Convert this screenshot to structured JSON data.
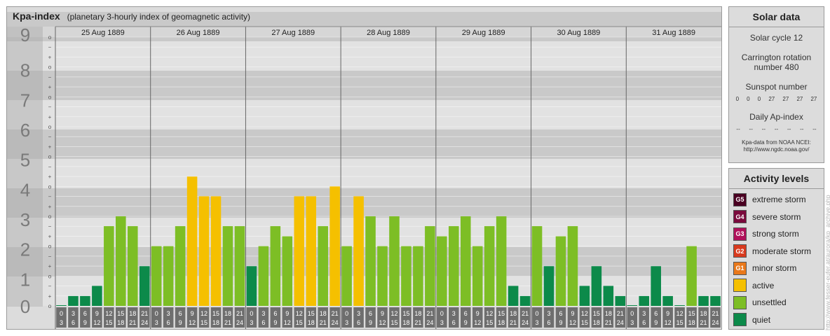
{
  "header": {
    "title": "Kpa-index",
    "subtitle": "(planetary 3-hourly index of geomagnetic activity)"
  },
  "chart_data": {
    "type": "bar",
    "title": "Kpa-index",
    "subtitle": "(planetary 3-hourly index of geomagnetic activity)",
    "ylim": [
      0,
      9
    ],
    "y_ticks": [
      "0",
      "1",
      "2",
      "3",
      "4",
      "5",
      "6",
      "7",
      "8",
      "9"
    ],
    "y_subticks": [
      "o",
      "+",
      "−",
      "o"
    ],
    "days": [
      "25 Aug 1889",
      "26 Aug 1889",
      "27 Aug 1889",
      "28 Aug 1889",
      "29 Aug 1889",
      "30 Aug 1889",
      "31 Aug 1889"
    ],
    "interval_labels": [
      [
        "0",
        "3"
      ],
      [
        "3",
        "6"
      ],
      [
        "6",
        "9"
      ],
      [
        "9",
        "12"
      ],
      [
        "12",
        "15"
      ],
      [
        "15",
        "18"
      ],
      [
        "18",
        "21"
      ],
      [
        "21",
        "24"
      ]
    ],
    "values": [
      [
        0.0,
        0.33,
        0.33,
        0.67,
        2.67,
        3.0,
        2.67,
        1.33
      ],
      [
        2.0,
        2.0,
        2.67,
        4.33,
        3.67,
        3.67,
        2.67,
        2.67
      ],
      [
        1.33,
        2.0,
        2.67,
        2.33,
        3.67,
        3.67,
        2.67,
        4.0
      ],
      [
        2.0,
        3.67,
        3.0,
        2.0,
        3.0,
        2.0,
        2.0,
        2.67
      ],
      [
        2.33,
        2.67,
        3.0,
        2.0,
        2.67,
        3.0,
        0.67,
        0.33
      ],
      [
        2.67,
        1.33,
        2.33,
        2.67,
        0.67,
        1.33,
        0.67,
        0.33
      ],
      [
        0.0,
        0.33,
        1.33,
        0.33,
        0.0,
        2.0,
        0.33,
        0.33
      ]
    ],
    "grid": true
  },
  "solar": {
    "heading": "Solar data",
    "cycle": "Solar cycle 12",
    "carrington_line1": "Carrington rotation",
    "carrington_line2": "number 480",
    "sunspot_label": "Sunspot number",
    "sunspot_values": [
      "0",
      "0",
      "0",
      "27",
      "27",
      "27",
      "27"
    ],
    "ap_label": "Daily Ap-index",
    "ap_values": [
      "--",
      "--",
      "--",
      "--",
      "--",
      "--",
      "--"
    ],
    "source_line1": "Kpa-data from NOAA NCEI:",
    "source_line2": "http://www.ngdc.noaa.gov/"
  },
  "levels": {
    "heading": "Activity levels",
    "items": [
      {
        "code": "G5",
        "label": "extreme storm",
        "color": "#4a0022"
      },
      {
        "code": "G4",
        "label": "severe storm",
        "color": "#7a0a3c"
      },
      {
        "code": "G3",
        "label": "strong storm",
        "color": "#b0105a"
      },
      {
        "code": "G2",
        "label": "moderate storm",
        "color": "#d83a1e"
      },
      {
        "code": "G1",
        "label": "minor storm",
        "color": "#e9781a"
      },
      {
        "code": "",
        "label": "active",
        "color": "#f5c000"
      },
      {
        "code": "",
        "label": "unsettled",
        "color": "#7dbe25"
      },
      {
        "code": "",
        "label": "quiet",
        "color": "#0c8a4a"
      }
    ]
  },
  "credit": "http://www.fesser-eufer.at/aurora/kp_archive.php"
}
